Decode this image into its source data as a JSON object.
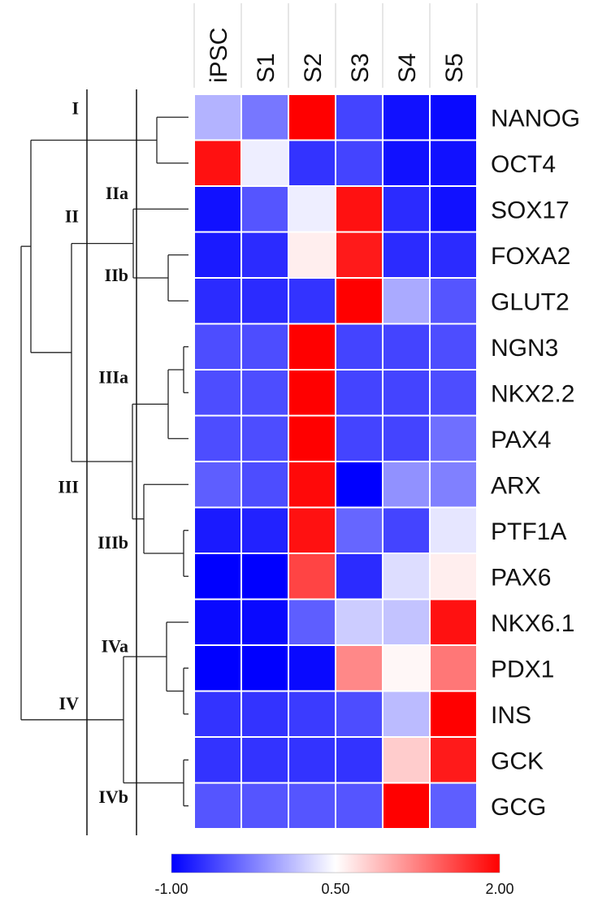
{
  "chart_data": {
    "type": "heatmap",
    "columns": [
      "iPSC",
      "S1",
      "S2",
      "S3",
      "S4",
      "S5"
    ],
    "rows": [
      "NANOG",
      "OCT4",
      "SOX17",
      "FOXA2",
      "GLUT2",
      "NGN3",
      "NKX2.2",
      "PAX4",
      "ARX",
      "PTF1A",
      "PAX6",
      "NKX6.1",
      "PDX1",
      "INS",
      "GCK",
      "GCG"
    ],
    "values": [
      [
        0.05,
        -0.3,
        2.0,
        -0.6,
        -0.9,
        -0.95
      ],
      [
        1.9,
        0.4,
        -0.7,
        -0.6,
        -0.9,
        -0.9
      ],
      [
        -0.9,
        -0.5,
        0.4,
        1.9,
        -0.75,
        -0.9
      ],
      [
        -0.85,
        -0.75,
        0.6,
        1.85,
        -0.75,
        -0.75
      ],
      [
        -0.75,
        -0.75,
        -0.7,
        2.0,
        0.0,
        -0.5
      ],
      [
        -0.55,
        -0.55,
        2.0,
        -0.6,
        -0.6,
        -0.55
      ],
      [
        -0.55,
        -0.55,
        2.0,
        -0.6,
        -0.6,
        -0.55
      ],
      [
        -0.55,
        -0.55,
        2.0,
        -0.6,
        -0.6,
        -0.35
      ],
      [
        -0.45,
        -0.55,
        1.95,
        -1.0,
        -0.15,
        -0.25
      ],
      [
        -0.85,
        -0.8,
        1.9,
        -0.4,
        -0.6,
        0.35
      ],
      [
        -1.0,
        -1.0,
        1.6,
        -0.75,
        0.3,
        0.6
      ],
      [
        -0.95,
        -0.95,
        -0.45,
        0.2,
        0.15,
        1.9
      ],
      [
        -1.0,
        -1.0,
        -0.95,
        1.2,
        0.55,
        1.3
      ],
      [
        -0.7,
        -0.7,
        -0.65,
        -0.55,
        0.1,
        2.0
      ],
      [
        -0.7,
        -0.7,
        -0.7,
        -0.7,
        0.8,
        1.85
      ],
      [
        -0.5,
        -0.5,
        -0.5,
        -0.5,
        2.0,
        -0.45
      ]
    ],
    "color_scale": {
      "min": -1.0,
      "mid": 0.5,
      "max": 2.0,
      "min_color": "#0000ff",
      "mid_color": "#ffffff",
      "max_color": "#ff0000",
      "tick_labels": [
        "-1.00",
        "0.50",
        "2.00"
      ]
    },
    "clusters": {
      "level1": [
        "I",
        "II",
        "III",
        "IV"
      ],
      "level2": [
        "IIa",
        "IIb",
        "IIIa",
        "IIIb",
        "IVa",
        "IVb"
      ]
    },
    "title": "",
    "xlabel": "",
    "ylabel": ""
  }
}
